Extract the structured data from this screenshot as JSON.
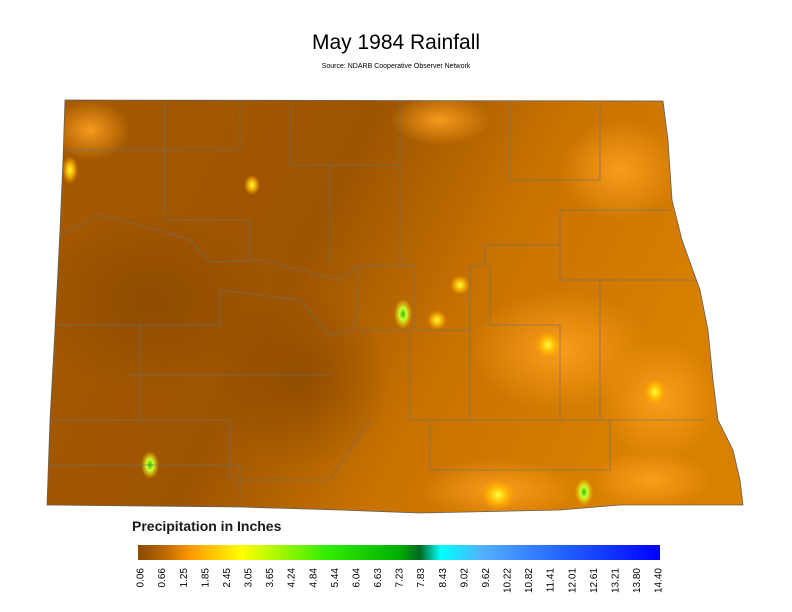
{
  "header": {
    "title": "May 1984 Rainfall",
    "subtitle": "Source: NDARB Cooperative Observer Network"
  },
  "legend": {
    "title": "Precipitation in Inches",
    "ticks": [
      "0.06",
      "0.66",
      "1.25",
      "1.85",
      "2.45",
      "3.05",
      "3.65",
      "4.24",
      "4.84",
      "5.44",
      "6.04",
      "6.63",
      "7.23",
      "7.83",
      "8.43",
      "9.02",
      "9.62",
      "10.22",
      "10.82",
      "11.41",
      "12.01",
      "12.61",
      "13.21",
      "13.80",
      "14.40"
    ]
  }
}
